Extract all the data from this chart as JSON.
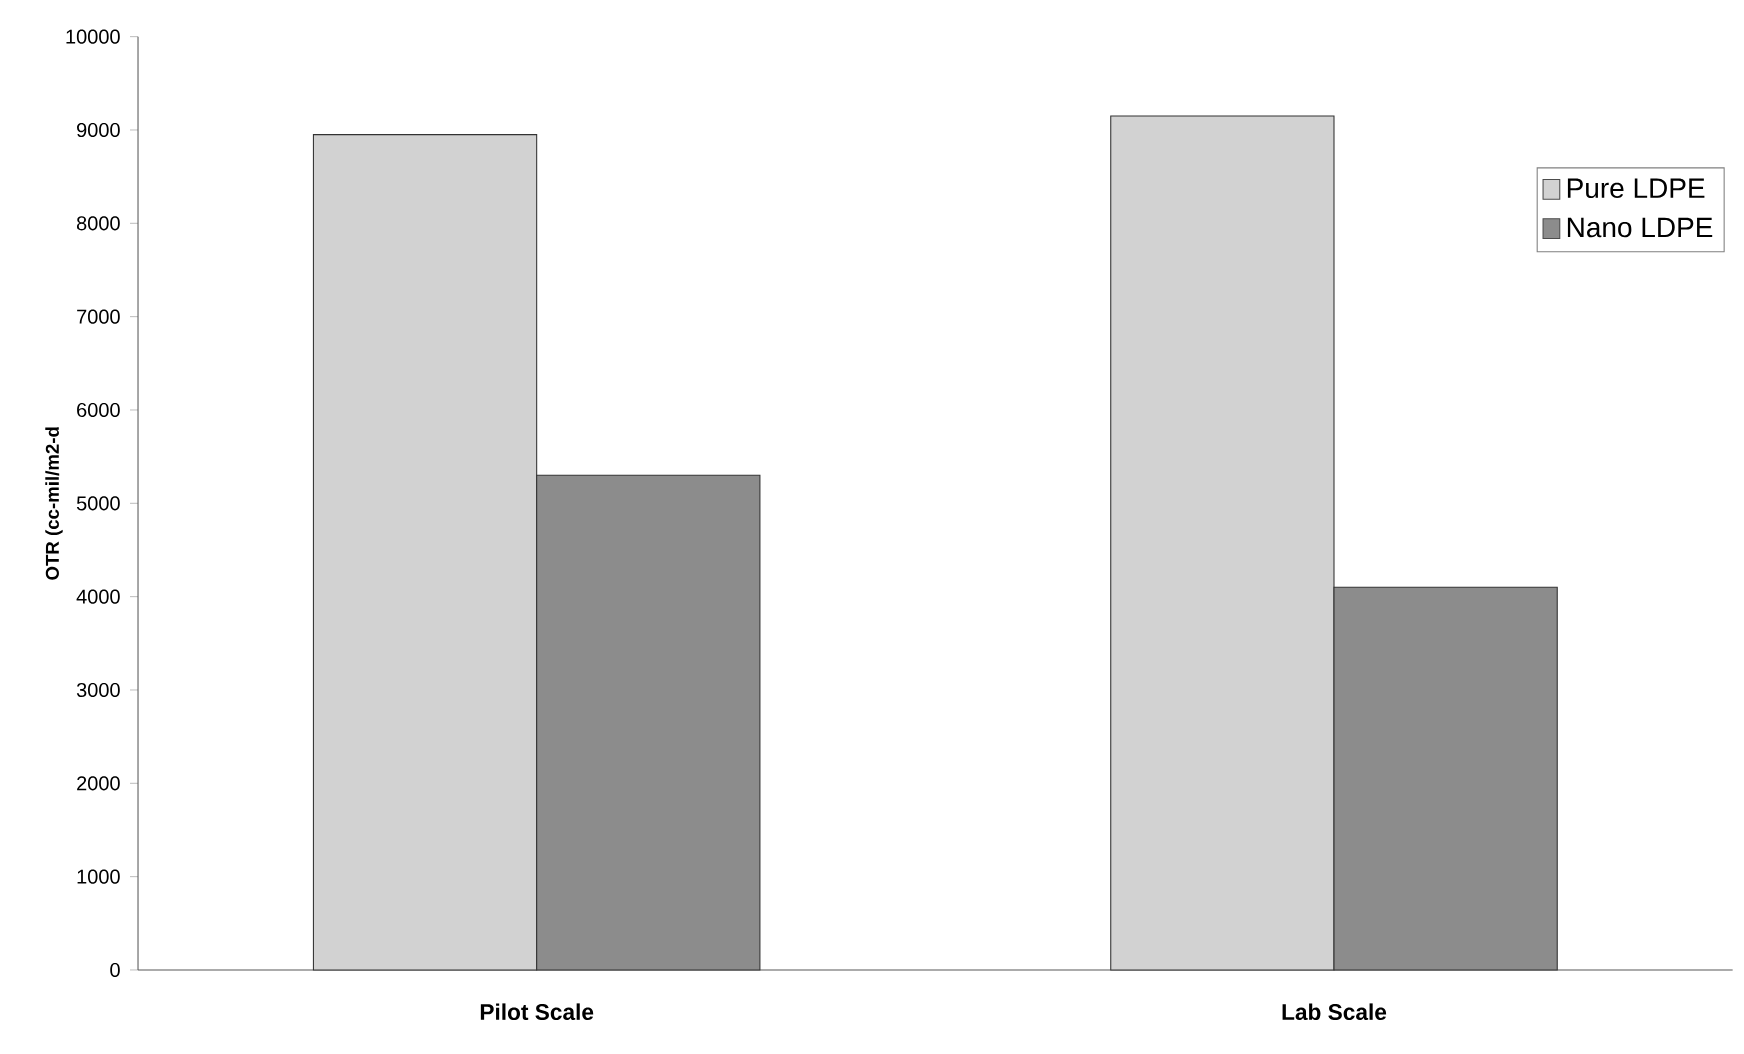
{
  "chart_data": {
    "type": "bar",
    "ylabel": "OTR (cc-mil/m2-d",
    "categories": [
      "Pilot Scale",
      "Lab Scale"
    ],
    "series": [
      {
        "name": "Pure LDPE",
        "color": "#d2d2d2",
        "values": [
          8950,
          9150
        ]
      },
      {
        "name": "Nano LDPE",
        "color": "#8c8c8c",
        "values": [
          5300,
          4100
        ]
      }
    ],
    "ylim": [
      0,
      10000
    ],
    "yticks": [
      0,
      1000,
      2000,
      3000,
      4000,
      5000,
      6000,
      7000,
      8000,
      9000,
      10000
    ],
    "legend": "top right"
  }
}
